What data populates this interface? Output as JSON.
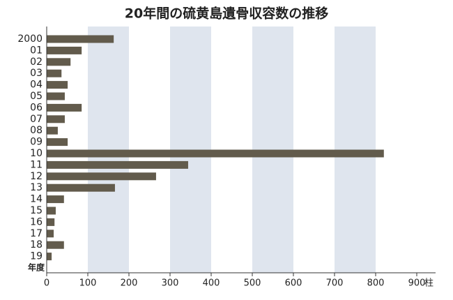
{
  "chart_data": {
    "type": "hbar",
    "title": "20年間の硫黄島遺骨収容数の推移",
    "categories": [
      "2000",
      "01",
      "02",
      "03",
      "04",
      "05",
      "06",
      "07",
      "08",
      "09",
      "10",
      "11",
      "12",
      "13",
      "14",
      "15",
      "16",
      "17",
      "18",
      "19"
    ],
    "values": [
      163,
      85,
      58,
      36,
      51,
      44,
      85,
      44,
      27,
      51,
      820,
      344,
      266,
      166,
      42,
      22,
      19,
      17,
      42,
      12
    ],
    "color": "#625b4c",
    "band_color": "#dfe5ee",
    "y_label": "年度",
    "x_unit": "柱",
    "xlim": [
      0,
      950
    ],
    "xticks": [
      0,
      100,
      200,
      300,
      400,
      500,
      600,
      700,
      800,
      900
    ]
  }
}
